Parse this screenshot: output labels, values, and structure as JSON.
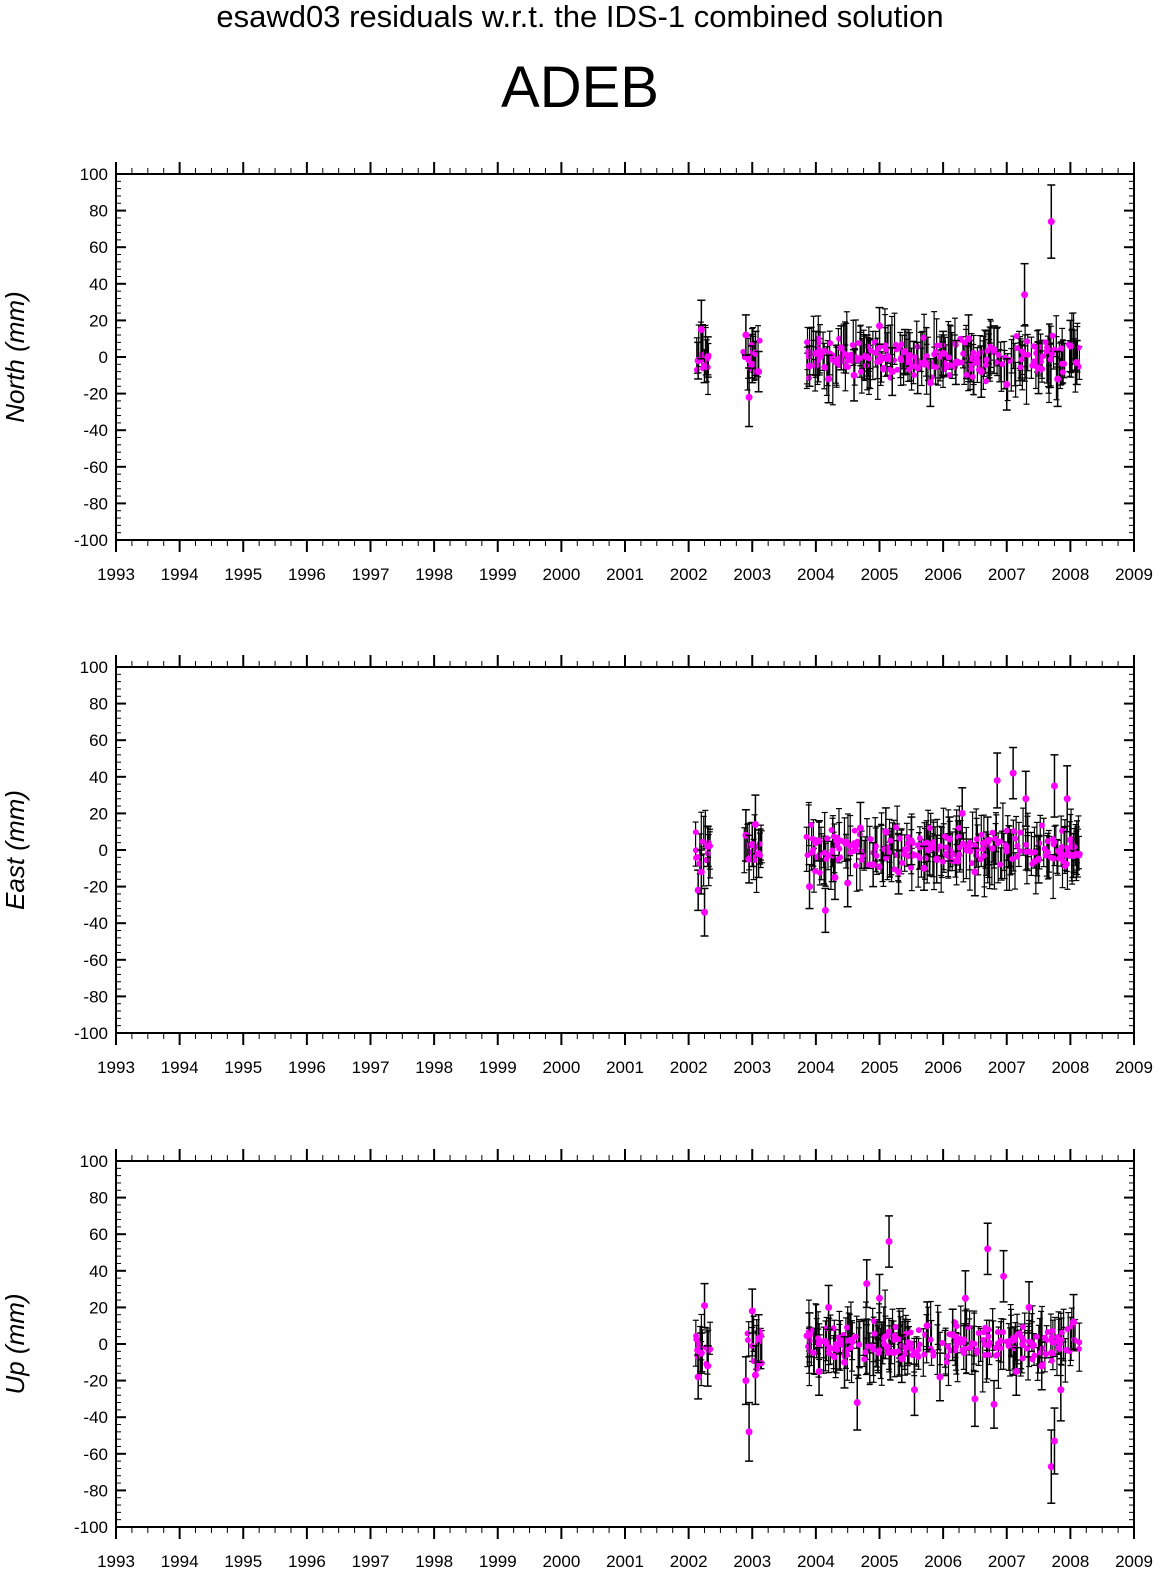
{
  "suptitle": "esawd03 residuals w.r.t. the IDS-1 combined solution",
  "station": "ADEB",
  "colors": {
    "point": "#ff00ff",
    "errorbar": "#000000",
    "axes": "#000000"
  },
  "chart_data": [
    {
      "type": "scatter",
      "ylabel": "North (mm)",
      "xlim": [
        1993,
        2009
      ],
      "ylim": [
        -100,
        100
      ],
      "x_ticks": [
        1993,
        1994,
        1995,
        1996,
        1997,
        1998,
        1999,
        2000,
        2001,
        2002,
        2003,
        2004,
        2005,
        2006,
        2007,
        2008,
        2009
      ],
      "y_ticks": [
        -100,
        -80,
        -60,
        -40,
        -20,
        0,
        20,
        40,
        60,
        80,
        100
      ],
      "error_bars": true,
      "grid": false,
      "series": [
        {
          "x": [
            2002.15,
            2002.2,
            2002.25,
            2002.3,
            2002.9,
            2002.95,
            2003.0,
            2003.05,
            2003.1,
            2003.9,
            2004.0,
            2004.2,
            2004.4,
            2004.6,
            2004.8,
            2005.0,
            2005.2,
            2005.4,
            2005.6,
            2005.8,
            2006.0,
            2006.2,
            2006.4,
            2006.6,
            2006.8,
            2007.0,
            2007.28,
            2007.5,
            2007.7,
            2007.8,
            2008.0,
            2008.1
          ],
          "y": [
            -2,
            15,
            -5,
            0,
            12,
            -22,
            -4,
            2,
            -8,
            -5,
            2,
            -12,
            5,
            -10,
            0,
            17,
            -8,
            3,
            -6,
            -14,
            2,
            -3,
            10,
            -8,
            4,
            -15,
            34,
            -6,
            74,
            -12,
            6,
            -3
          ],
          "err": [
            10,
            16,
            9,
            11,
            11,
            16,
            10,
            12,
            11,
            11,
            12,
            13,
            12,
            14,
            12,
            10,
            13,
            12,
            14,
            13,
            12,
            12,
            13,
            14,
            13,
            14,
            17,
            14,
            20,
            15,
            14,
            12
          ]
        }
      ]
    },
    {
      "type": "scatter",
      "ylabel": "East (mm)",
      "xlim": [
        1993,
        2009
      ],
      "ylim": [
        -100,
        100
      ],
      "x_ticks": [
        1993,
        1994,
        1995,
        1996,
        1997,
        1998,
        1999,
        2000,
        2001,
        2002,
        2003,
        2004,
        2005,
        2006,
        2007,
        2008,
        2009
      ],
      "y_ticks": [
        -100,
        -80,
        -60,
        -40,
        -20,
        0,
        20,
        40,
        60,
        80,
        100
      ],
      "error_bars": true,
      "grid": false,
      "series": [
        {
          "x": [
            2002.15,
            2002.2,
            2002.25,
            2002.3,
            2002.9,
            2002.95,
            2003.0,
            2003.05,
            2003.1,
            2003.9,
            2004.05,
            2004.15,
            2004.3,
            2004.5,
            2004.7,
            2004.9,
            2005.1,
            2005.3,
            2005.5,
            2005.7,
            2005.9,
            2006.1,
            2006.3,
            2006.5,
            2006.7,
            2006.85,
            2007.1,
            2007.3,
            2007.5,
            2007.75,
            2007.95,
            2008.05
          ],
          "y": [
            -22,
            -12,
            -34,
            2,
            8,
            -5,
            3,
            14,
            -2,
            -20,
            5,
            -33,
            -15,
            -18,
            12,
            -8,
            10,
            -12,
            5,
            -10,
            -5,
            6,
            20,
            -12,
            5,
            38,
            42,
            28,
            -5,
            35,
            28,
            -3
          ],
          "err": [
            11,
            12,
            13,
            11,
            14,
            13,
            12,
            16,
            13,
            12,
            11,
            12,
            12,
            13,
            14,
            12,
            13,
            12,
            13,
            12,
            13,
            12,
            14,
            13,
            13,
            15,
            14,
            15,
            13,
            17,
            18,
            12
          ]
        }
      ]
    },
    {
      "type": "scatter",
      "ylabel": "Up (mm)",
      "xlim": [
        1993,
        2009
      ],
      "ylim": [
        -100,
        100
      ],
      "x_ticks": [
        1993,
        1994,
        1995,
        1996,
        1997,
        1998,
        1999,
        2000,
        2001,
        2002,
        2003,
        2004,
        2005,
        2006,
        2007,
        2008,
        2009
      ],
      "y_ticks": [
        -100,
        -80,
        -60,
        -40,
        -20,
        0,
        20,
        40,
        60,
        80,
        100
      ],
      "error_bars": true,
      "grid": false,
      "series": [
        {
          "x": [
            2002.15,
            2002.2,
            2002.25,
            2002.3,
            2002.9,
            2002.95,
            2003.0,
            2003.05,
            2003.1,
            2003.9,
            2004.05,
            2004.2,
            2004.45,
            2004.65,
            2004.8,
            2005.0,
            2005.15,
            2005.35,
            2005.55,
            2005.75,
            2005.95,
            2006.15,
            2006.35,
            2006.5,
            2006.7,
            2006.8,
            2006.95,
            2007.15,
            2007.35,
            2007.55,
            2007.7,
            2007.75,
            2007.85,
            2008.05
          ],
          "y": [
            -18,
            -5,
            21,
            -12,
            -20,
            -48,
            18,
            -17,
            3,
            5,
            -15,
            20,
            -10,
            -32,
            33,
            25,
            56,
            -8,
            -25,
            10,
            -18,
            5,
            25,
            -30,
            52,
            -33,
            37,
            -15,
            20,
            -12,
            -67,
            -53,
            -25,
            12
          ],
          "err": [
            12,
            11,
            12,
            11,
            13,
            16,
            12,
            16,
            13,
            12,
            13,
            12,
            14,
            15,
            13,
            13,
            14,
            13,
            14,
            13,
            13,
            14,
            15,
            15,
            14,
            13,
            14,
            13,
            14,
            13,
            20,
            18,
            17,
            15
          ]
        }
      ]
    }
  ]
}
